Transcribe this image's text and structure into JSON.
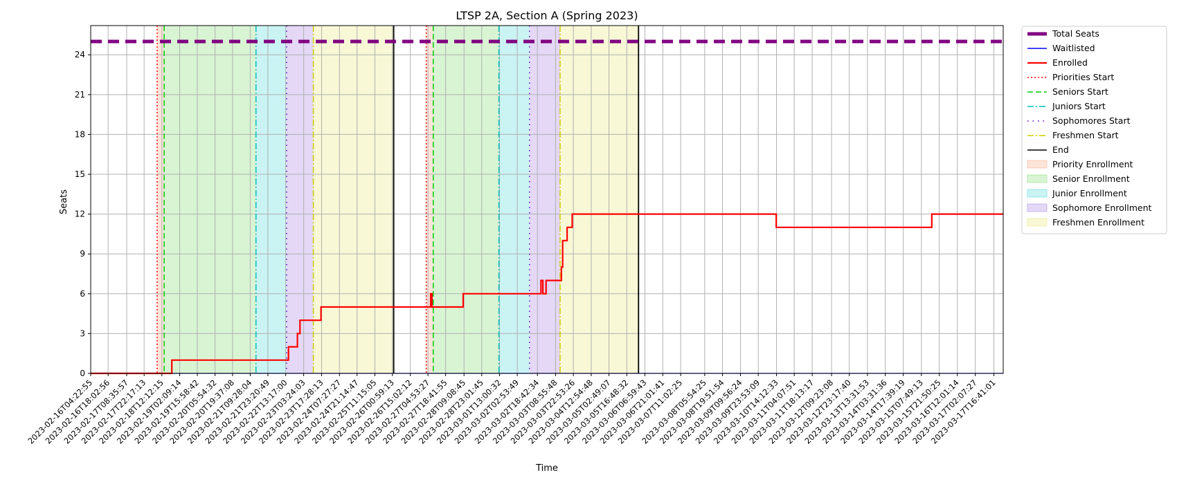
{
  "chart_data": {
    "type": "line",
    "title": "LTSP 2A, Section A (Spring 2023)",
    "xlabel": "Time",
    "ylabel": "Seats",
    "ylim": [
      0,
      26.2
    ],
    "yticks": [
      0,
      3,
      6,
      9,
      12,
      15,
      18,
      21,
      24
    ],
    "xlim": [
      "2023-02-16T04:22:55",
      "2023-03-18T00:00:00"
    ],
    "xticks": [
      "2023-02-16T04:22:55",
      "2023-02-16T18:02:56",
      "2023-02-17T08:35:57",
      "2023-02-17T22:17:13",
      "2023-02-18T12:12:15",
      "2023-02-19T02:09:14",
      "2023-02-19T15:58:42",
      "2023-02-20T05:54:32",
      "2023-02-20T19:37:08",
      "2023-02-21T09:28:04",
      "2023-02-21T23:20:49",
      "2023-02-22T13:17:00",
      "2023-02-23T03:24:03",
      "2023-02-23T17:28:13",
      "2023-02-24T07:27:27",
      "2023-02-24T21:14:47",
      "2023-02-25T11:15:05",
      "2023-02-26T00:59:13",
      "2023-02-26T15:02:12",
      "2023-02-27T04:53:27",
      "2023-02-27T18:41:55",
      "2023-02-28T09:08:45",
      "2023-02-28T23:01:45",
      "2023-03-01T13:00:32",
      "2023-03-02T02:53:49",
      "2023-03-02T18:42:34",
      "2023-03-03T08:55:48",
      "2023-03-03T22:53:26",
      "2023-03-04T12:54:48",
      "2023-03-05T02:49:07",
      "2023-03-05T16:48:32",
      "2023-03-06T06:59:43",
      "2023-03-06T21:01:41",
      "2023-03-07T11:02:25",
      "2023-03-08T05:54:25",
      "2023-03-08T19:51:54",
      "2023-03-09T09:56:24",
      "2023-03-09T23:53:09",
      "2023-03-10T14:12:33",
      "2023-03-11T04:07:51",
      "2023-03-11T18:13:17",
      "2023-03-12T09:23:08",
      "2023-03-12T23:17:40",
      "2023-03-13T13:31:53",
      "2023-03-14T03:31:36",
      "2023-03-14T17:39:19",
      "2023-03-15T07:49:13",
      "2023-03-15T21:50:25",
      "2023-03-16T12:01:14",
      "2023-03-17T02:07:27",
      "2023-03-17T16:41:01"
    ],
    "grid": true,
    "legend_position": "outside-upper-right",
    "series": [
      {
        "name": "Total Seats",
        "style": "dashed",
        "color": "#800080",
        "points": [
          [
            "2023-02-16T04:22:55",
            25
          ],
          [
            "2023-03-18T00:00:00",
            25
          ]
        ]
      },
      {
        "name": "Waitlisted",
        "style": "solid",
        "color": "#0000ff",
        "points": [
          [
            "2023-02-16T04:22:55",
            0
          ],
          [
            "2023-03-18T00:00:00",
            0
          ]
        ]
      },
      {
        "name": "Enrolled",
        "style": "steps",
        "color": "#ff0000",
        "points": [
          [
            "2023-02-16T04:22:55",
            0
          ],
          [
            "2023-02-18T20:00:00",
            0
          ],
          [
            "2023-02-18T20:00:00",
            1
          ],
          [
            "2023-02-22T15:30:00",
            1
          ],
          [
            "2023-02-22T15:30:00",
            2
          ],
          [
            "2023-02-22T22:30:00",
            2
          ],
          [
            "2023-02-22T22:30:00",
            3
          ],
          [
            "2023-02-23T00:30:00",
            3
          ],
          [
            "2023-02-23T00:30:00",
            4
          ],
          [
            "2023-02-23T17:00:00",
            4
          ],
          [
            "2023-02-23T17:00:00",
            5
          ],
          [
            "2023-02-27T07:00:00",
            5
          ],
          [
            "2023-02-27T07:00:00",
            6
          ],
          [
            "2023-02-27T08:00:00",
            6
          ],
          [
            "2023-02-27T08:00:00",
            5
          ],
          [
            "2023-02-28T08:30:00",
            5
          ],
          [
            "2023-02-28T08:30:00",
            6
          ],
          [
            "2023-03-02T21:30:00",
            6
          ],
          [
            "2023-03-02T21:30:00",
            7
          ],
          [
            "2023-03-02T23:00:00",
            7
          ],
          [
            "2023-03-02T23:00:00",
            6
          ],
          [
            "2023-03-03T01:30:00",
            6
          ],
          [
            "2023-03-03T01:30:00",
            7
          ],
          [
            "2023-03-03T13:30:00",
            7
          ],
          [
            "2023-03-03T13:30:00",
            8
          ],
          [
            "2023-03-03T14:30:00",
            8
          ],
          [
            "2023-03-03T14:30:00",
            10
          ],
          [
            "2023-03-03T18:00:00",
            10
          ],
          [
            "2023-03-03T18:00:00",
            11
          ],
          [
            "2023-03-03T22:00:00",
            11
          ],
          [
            "2023-03-03T22:00:00",
            12
          ],
          [
            "2023-03-10T14:00:00",
            12
          ],
          [
            "2023-03-10T14:00:00",
            11
          ],
          [
            "2023-03-15T16:00:00",
            11
          ],
          [
            "2023-03-15T16:00:00",
            12
          ],
          [
            "2023-03-18T00:00:00",
            12
          ]
        ]
      }
    ],
    "vlines": [
      {
        "name": "Priorities Start",
        "style": "dotted",
        "color": "#ff0000",
        "x": [
          "2023-02-18T08:30:00",
          "2023-02-27T03:30:00"
        ]
      },
      {
        "name": "Seniors Start",
        "style": "dashed",
        "color": "#00cc00",
        "x": [
          "2023-02-18T14:00:00",
          "2023-02-27T09:00:00"
        ]
      },
      {
        "name": "Juniors Start",
        "style": "dashdot",
        "color": "#00bfbf",
        "x": [
          "2023-02-21T14:00:00",
          "2023-03-01T12:30:00"
        ]
      },
      {
        "name": "Sophomores Start",
        "style": "densedot",
        "color": "#5500cc",
        "x": [
          "2023-02-22T14:00:00",
          "2023-03-02T12:30:00"
        ]
      },
      {
        "name": "Freshmen Start",
        "style": "dashdot",
        "color": "#cccc00",
        "x": [
          "2023-02-23T11:00:00",
          "2023-03-03T12:30:00"
        ]
      },
      {
        "name": "End",
        "style": "solid",
        "color": "#000000",
        "x": [
          "2023-02-26T02:00:00",
          "2023-03-06T02:00:00"
        ]
      }
    ],
    "regions": [
      {
        "name": "Priority Enrollment",
        "color": "#f4a582",
        "spans": [
          [
            "2023-02-18T08:30:00",
            "2023-02-18T14:00:00"
          ],
          [
            "2023-02-27T03:30:00",
            "2023-02-27T09:00:00"
          ]
        ]
      },
      {
        "name": "Senior Enrollment",
        "color": "#7fdc6e",
        "spans": [
          [
            "2023-02-18T14:00:00",
            "2023-02-21T14:00:00"
          ],
          [
            "2023-02-27T09:00:00",
            "2023-03-01T12:30:00"
          ]
        ]
      },
      {
        "name": "Junior Enrollment",
        "color": "#4fd6dc",
        "spans": [
          [
            "2023-02-21T14:00:00",
            "2023-02-22T14:00:00"
          ],
          [
            "2023-03-01T12:30:00",
            "2023-03-02T12:30:00"
          ]
        ]
      },
      {
        "name": "Sophomore Enrollment",
        "color": "#a57fe0",
        "spans": [
          [
            "2023-02-22T14:00:00",
            "2023-02-23T11:00:00"
          ],
          [
            "2023-03-02T12:30:00",
            "2023-03-03T12:30:00"
          ]
        ]
      },
      {
        "name": "Freshmen Enrollment",
        "color": "#e8e878",
        "spans": [
          [
            "2023-02-23T11:00:00",
            "2023-02-26T02:00:00"
          ],
          [
            "2023-03-03T12:30:00",
            "2023-03-06T02:00:00"
          ]
        ]
      }
    ],
    "legend_order": [
      "Total Seats",
      "Waitlisted",
      "Enrolled",
      "Priorities Start",
      "Seniors Start",
      "Juniors Start",
      "Sophomores Start",
      "Freshmen Start",
      "End",
      "Priority Enrollment",
      "Senior Enrollment",
      "Junior Enrollment",
      "Sophomore Enrollment",
      "Freshmen Enrollment"
    ]
  }
}
